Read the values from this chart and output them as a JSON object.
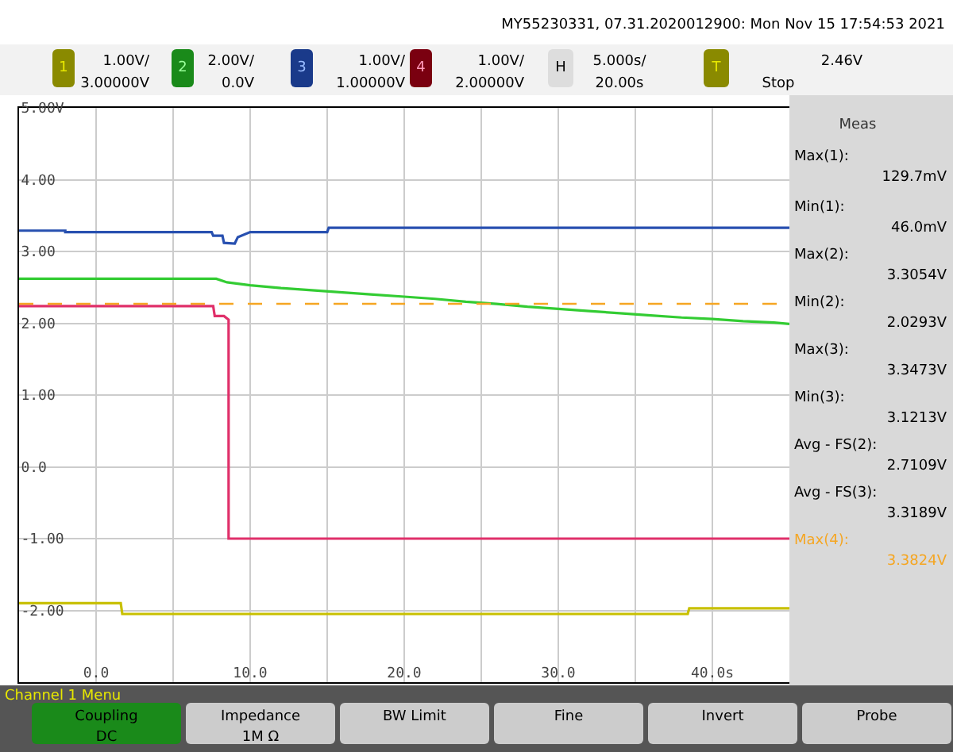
{
  "chart_data": {
    "type": "line",
    "grid": true,
    "line_style": "solid",
    "marker": "none",
    "xlim": [
      -5,
      45
    ],
    "ylim": [
      -3,
      5
    ],
    "xticks": [
      {
        "value": -5,
        "label": null
      },
      {
        "value": 0,
        "label": "0.0"
      },
      {
        "value": 5,
        "label": null
      },
      {
        "value": 10,
        "label": "10.0"
      },
      {
        "value": 15,
        "label": null
      },
      {
        "value": 20,
        "label": "20.0"
      },
      {
        "value": 25,
        "label": null
      },
      {
        "value": 30,
        "label": "30.0"
      },
      {
        "value": 35,
        "label": null
      },
      {
        "value": 40,
        "label": "40.0s"
      }
    ],
    "yticks": [
      {
        "value": -3,
        "label": null
      },
      {
        "value": -2,
        "label": "-2.00"
      },
      {
        "value": -1,
        "label": "-1.00"
      },
      {
        "value": 0,
        "label": "0.0"
      },
      {
        "value": 1,
        "label": "1.00"
      },
      {
        "value": 2,
        "label": "2.00"
      },
      {
        "value": 3,
        "label": "3.00"
      },
      {
        "value": 4,
        "label": "4.00"
      },
      {
        "value": 5,
        "label": "5.00V"
      }
    ],
    "ref_lines": [
      {
        "axis": "y",
        "value": 2.27,
        "color": "#f5a623",
        "line_style": "dashed"
      }
    ],
    "series": [
      {
        "color": "#c8c000",
        "x": [
          -5,
          1.6,
          1.7,
          38.4,
          38.5,
          45
        ],
        "values": [
          -1.9,
          -1.9,
          -2.05,
          -2.05,
          -1.97,
          -1.97
        ]
      },
      {
        "color": "#33cc33",
        "x": [
          -5,
          7.8,
          8.5,
          10,
          12,
          14,
          16,
          18,
          20,
          22,
          24,
          26,
          28,
          30,
          32,
          34,
          36,
          38,
          40,
          42,
          44,
          45
        ],
        "values": [
          2.62,
          2.62,
          2.57,
          2.53,
          2.49,
          2.46,
          2.43,
          2.4,
          2.37,
          2.34,
          2.3,
          2.27,
          2.23,
          2.2,
          2.17,
          2.14,
          2.11,
          2.08,
          2.06,
          2.03,
          2.01,
          1.99
        ]
      },
      {
        "color": "#2850b0",
        "x": [
          -5,
          -2,
          -2,
          7.5,
          7.6,
          8.2,
          8.3,
          9,
          9.2,
          10,
          15,
          15.1,
          45
        ],
        "values": [
          3.29,
          3.29,
          3.27,
          3.27,
          3.22,
          3.22,
          3.12,
          3.11,
          3.2,
          3.27,
          3.27,
          3.33,
          3.33
        ]
      },
      {
        "color": "#e0306a",
        "x": [
          -5,
          7.6,
          7.7,
          8.3,
          8.6,
          8.6,
          45
        ],
        "values": [
          2.24,
          2.24,
          2.1,
          2.1,
          2.05,
          -1,
          -1
        ]
      }
    ],
    "annotations": [
      "MY55230331, 07.31.2020012900: Mon Nov 15 17:54:53 2021",
      "1.00V/",
      "3.00000V",
      "2.00V/",
      "0.0V",
      "1.00V/",
      "1.00000V",
      "1.00V/",
      "2.00000V",
      "5.000s/",
      "20.00s",
      "2.46V",
      "Stop",
      "Meas",
      "Max(1):",
      "129.7mV",
      "Min(1):",
      "46.0mV",
      "Max(2):",
      "3.3054V",
      "Min(2):",
      "2.0293V",
      "Max(3):",
      "3.3473V",
      "Min(3):",
      "3.1213V",
      "Avg - FS(2):",
      "2.7109V",
      "Avg - FS(3):",
      "3.3189V",
      "Max(4):",
      "3.3824V",
      "Channel 1 Menu",
      "Coupling",
      "DC",
      "Impedance",
      "1M Ω",
      "BW Limit",
      "Fine",
      "Invert",
      "Probe",
      "1",
      "2",
      "3",
      "4",
      "H",
      "T"
    ]
  }
}
